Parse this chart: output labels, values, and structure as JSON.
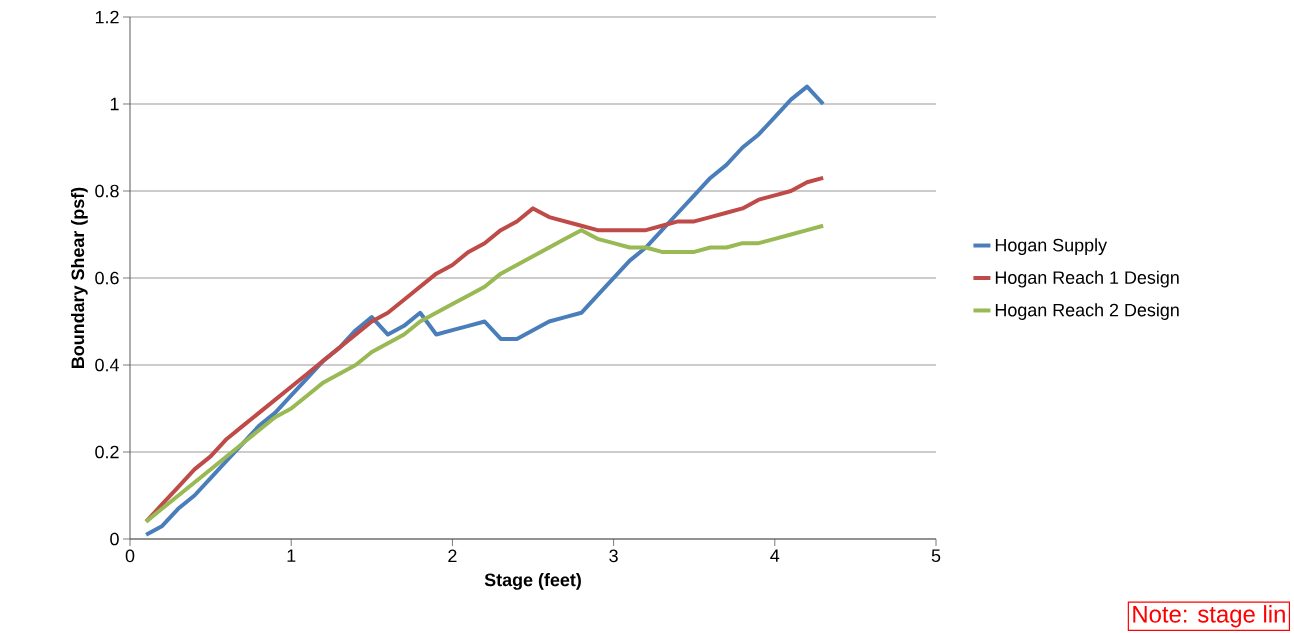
{
  "chart_data": {
    "type": "line",
    "xlabel": "Stage (feet)",
    "ylabel": "Boundary Shear (psf)",
    "x": [
      0.1,
      0.2,
      0.3,
      0.4,
      0.5,
      0.6,
      0.7,
      0.8,
      0.9,
      1.0,
      1.1,
      1.2,
      1.3,
      1.4,
      1.5,
      1.6,
      1.7,
      1.8,
      1.9,
      2.0,
      2.1,
      2.2,
      2.3,
      2.4,
      2.5,
      2.6,
      2.7,
      2.8,
      2.9,
      3.0,
      3.1,
      3.2,
      3.3,
      3.4,
      3.5,
      3.6,
      3.7,
      3.8,
      3.9,
      4.0,
      4.1,
      4.2,
      4.3
    ],
    "series": [
      {
        "name": "Hogan Supply",
        "color": "#4a7ebb",
        "values": [
          0.01,
          0.03,
          0.07,
          0.1,
          0.14,
          0.18,
          0.22,
          0.26,
          0.29,
          0.33,
          0.37,
          0.41,
          0.44,
          0.48,
          0.51,
          0.47,
          0.49,
          0.52,
          0.47,
          0.48,
          0.49,
          0.5,
          0.46,
          0.46,
          0.48,
          0.5,
          0.51,
          0.52,
          0.56,
          0.6,
          0.64,
          0.67,
          0.71,
          0.75,
          0.79,
          0.83,
          0.86,
          0.9,
          0.93,
          0.97,
          1.01,
          1.04,
          1.0
        ]
      },
      {
        "name": "Hogan Reach 1 Design",
        "color": "#be4b48",
        "values": [
          0.04,
          0.08,
          0.12,
          0.16,
          0.19,
          0.23,
          0.26,
          0.29,
          0.32,
          0.35,
          0.38,
          0.41,
          0.44,
          0.47,
          0.5,
          0.52,
          0.55,
          0.58,
          0.61,
          0.63,
          0.66,
          0.68,
          0.71,
          0.73,
          0.76,
          0.74,
          0.73,
          0.72,
          0.71,
          0.71,
          0.71,
          0.71,
          0.72,
          0.73,
          0.73,
          0.74,
          0.75,
          0.76,
          0.78,
          0.79,
          0.8,
          0.82,
          0.83
        ]
      },
      {
        "name": "Hogan Reach 2 Design",
        "color": "#98b954",
        "values": [
          0.04,
          0.07,
          0.1,
          0.13,
          0.16,
          0.19,
          0.22,
          0.25,
          0.28,
          0.3,
          0.33,
          0.36,
          0.38,
          0.4,
          0.43,
          0.45,
          0.47,
          0.5,
          0.52,
          0.54,
          0.56,
          0.58,
          0.61,
          0.63,
          0.65,
          0.67,
          0.69,
          0.71,
          0.69,
          0.68,
          0.67,
          0.67,
          0.66,
          0.66,
          0.66,
          0.67,
          0.67,
          0.68,
          0.68,
          0.69,
          0.7,
          0.71,
          0.72
        ]
      }
    ],
    "xlim": [
      0,
      5
    ],
    "xticks": [
      0,
      1,
      2,
      3,
      4,
      5
    ],
    "ylim": [
      0,
      1.2
    ],
    "yticks": [
      0,
      0.2,
      0.4,
      0.6,
      0.8,
      1,
      1.2
    ],
    "grid": "y",
    "legend": "right",
    "marker": "none",
    "line_style": "solid",
    "annotations": [
      "Note: stage lin"
    ]
  }
}
